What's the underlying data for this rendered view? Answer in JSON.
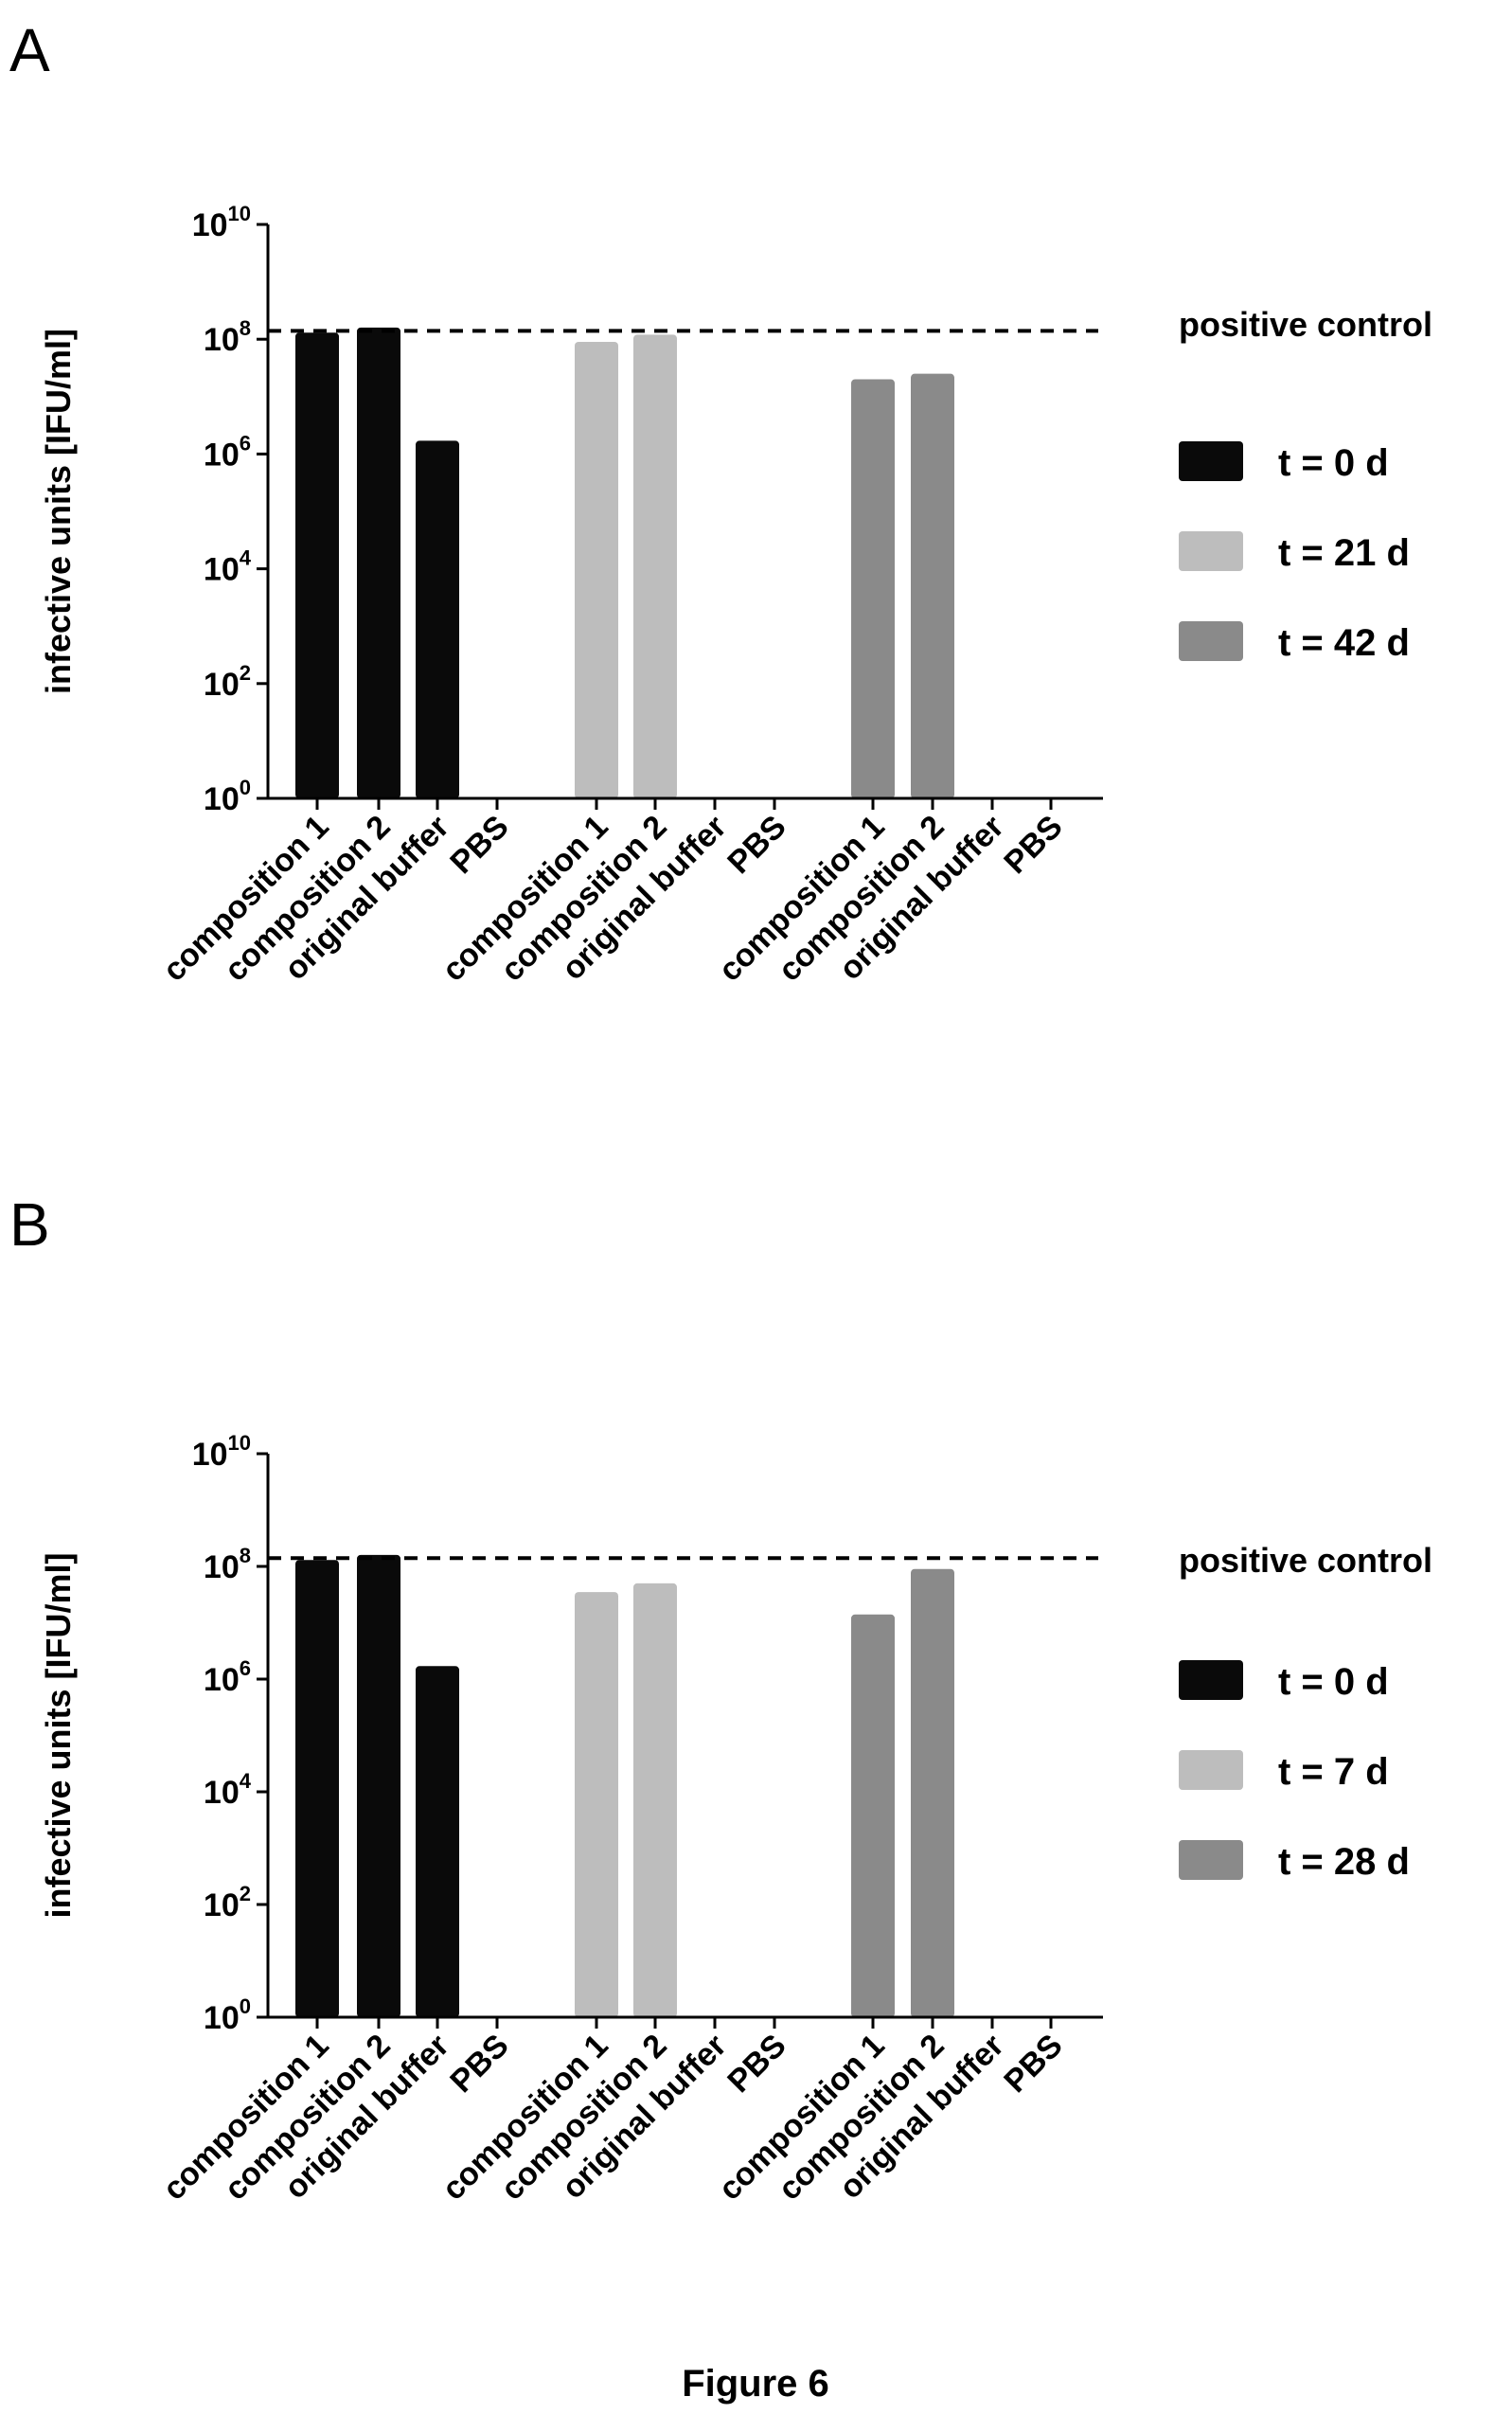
{
  "figure_caption": "Figure 6",
  "colors": {
    "t0": "#0a0a0a",
    "tmid": "#bdbdbd",
    "tlate": "#8a8a8a",
    "axis": "#000000"
  },
  "chart_data": [
    {
      "panel": "A",
      "type": "bar",
      "ylabel": "infective units [IFU/ml]",
      "yscale": "log",
      "ylim": [
        1,
        10000000000
      ],
      "yticks": [
        {
          "base": "10",
          "exp": "0"
        },
        {
          "base": "10",
          "exp": "2"
        },
        {
          "base": "10",
          "exp": "4"
        },
        {
          "base": "10",
          "exp": "6"
        },
        {
          "base": "10",
          "exp": "8"
        },
        {
          "base": "10",
          "exp": "10"
        }
      ],
      "categories": [
        "composition 1",
        "composition 2",
        "original buffer",
        "PBS",
        "composition 1",
        "composition 2",
        "original buffer",
        "PBS",
        "composition 1",
        "composition 2",
        "original buffer",
        "PBS"
      ],
      "reference_line": {
        "label": "positive control",
        "value": 140000000
      },
      "series": [
        {
          "name": "t = 0 d",
          "color": "#0a0a0a",
          "values": [
            130000000,
            160000000,
            1700000,
            1,
            null,
            null,
            null,
            null,
            null,
            null,
            null,
            null
          ]
        },
        {
          "name": "t = 21 d",
          "color": "#bdbdbd",
          "values": [
            null,
            null,
            null,
            null,
            90000000,
            120000000,
            1,
            1,
            null,
            null,
            null,
            null
          ]
        },
        {
          "name": "t = 42 d",
          "color": "#8a8a8a",
          "values": [
            null,
            null,
            null,
            null,
            null,
            null,
            null,
            null,
            20000000,
            25000000,
            1,
            1
          ]
        }
      ]
    },
    {
      "panel": "B",
      "type": "bar",
      "ylabel": "infective units [IFU/ml]",
      "yscale": "log",
      "ylim": [
        1,
        10000000000
      ],
      "yticks": [
        {
          "base": "10",
          "exp": "0"
        },
        {
          "base": "10",
          "exp": "2"
        },
        {
          "base": "10",
          "exp": "4"
        },
        {
          "base": "10",
          "exp": "6"
        },
        {
          "base": "10",
          "exp": "8"
        },
        {
          "base": "10",
          "exp": "10"
        }
      ],
      "categories": [
        "composition 1",
        "composition 2",
        "original buffer",
        "PBS",
        "composition 1",
        "composition 2",
        "original buffer",
        "PBS",
        "composition 1",
        "composition 2",
        "original buffer",
        "PBS"
      ],
      "reference_line": {
        "label": "positive control",
        "value": 140000000
      },
      "series": [
        {
          "name": "t = 0 d",
          "color": "#0a0a0a",
          "values": [
            130000000,
            160000000,
            1700000,
            1,
            null,
            null,
            null,
            null,
            null,
            null,
            null,
            null
          ]
        },
        {
          "name": "t = 7 d",
          "color": "#bdbdbd",
          "values": [
            null,
            null,
            null,
            null,
            35000000,
            50000000,
            1,
            1,
            null,
            null,
            null,
            null
          ]
        },
        {
          "name": "t = 28 d",
          "color": "#8a8a8a",
          "values": [
            null,
            null,
            null,
            null,
            null,
            null,
            null,
            null,
            14000000,
            90000000,
            1,
            1
          ]
        }
      ]
    }
  ]
}
